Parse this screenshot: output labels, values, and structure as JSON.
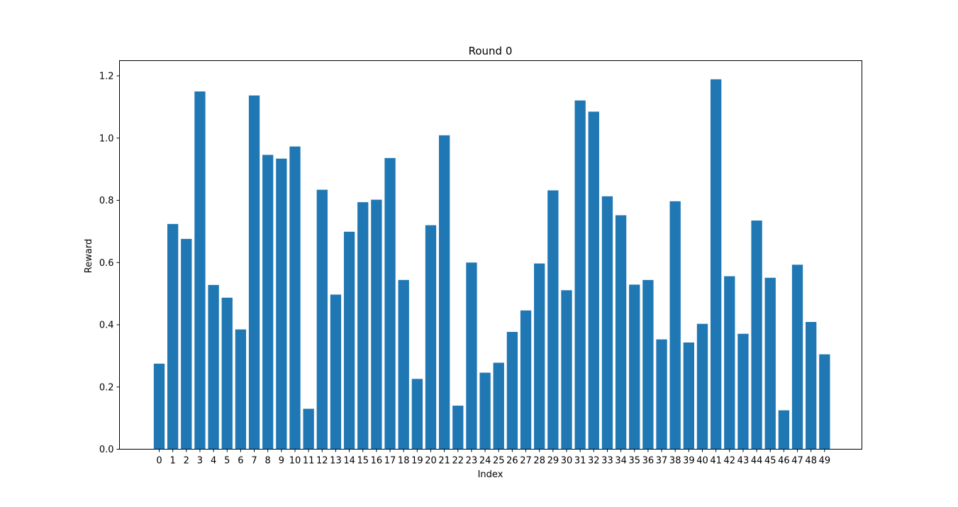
{
  "chart_data": {
    "type": "bar",
    "title": "Round 0",
    "xlabel": "Index",
    "ylabel": "Reward",
    "ylim": [
      0,
      1.25
    ],
    "yticks": [
      0.0,
      0.2,
      0.4,
      0.6,
      0.8,
      1.0,
      1.2
    ],
    "ytick_labels": [
      "0.0",
      "0.2",
      "0.4",
      "0.6",
      "0.8",
      "1.0",
      "1.2"
    ],
    "grid": false,
    "bar_color": "#1f77b4",
    "categories": [
      "0",
      "1",
      "2",
      "3",
      "4",
      "5",
      "6",
      "7",
      "8",
      "9",
      "10",
      "11",
      "12",
      "13",
      "14",
      "15",
      "16",
      "17",
      "18",
      "19",
      "20",
      "21",
      "22",
      "23",
      "24",
      "25",
      "26",
      "27",
      "28",
      "29",
      "30",
      "31",
      "32",
      "33",
      "34",
      "35",
      "36",
      "37",
      "38",
      "39",
      "40",
      "41",
      "42",
      "43",
      "44",
      "45",
      "46",
      "47",
      "48",
      "49"
    ],
    "values": [
      0.275,
      0.724,
      0.676,
      1.15,
      0.528,
      0.487,
      0.385,
      1.137,
      0.946,
      0.934,
      0.973,
      0.13,
      0.834,
      0.497,
      0.699,
      0.794,
      0.802,
      0.936,
      0.544,
      0.226,
      0.72,
      1.009,
      0.14,
      0.6,
      0.246,
      0.278,
      0.377,
      0.446,
      0.597,
      0.832,
      0.511,
      1.121,
      1.085,
      0.813,
      0.752,
      0.529,
      0.544,
      0.353,
      0.797,
      0.343,
      0.403,
      1.189,
      0.556,
      0.371,
      0.735,
      0.551,
      0.125,
      0.593,
      0.409,
      0.305
    ]
  }
}
